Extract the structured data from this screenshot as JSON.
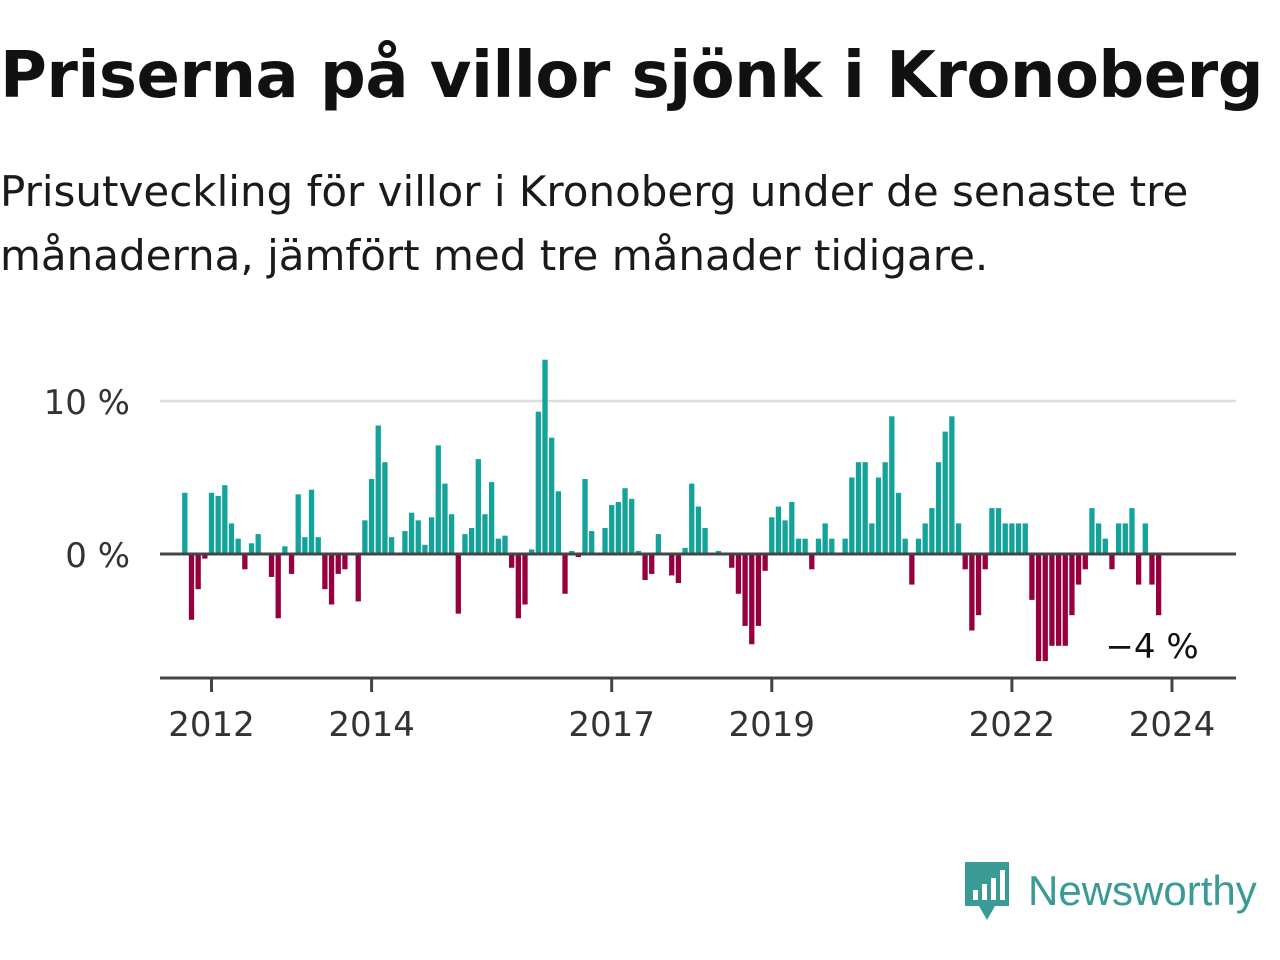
{
  "header": {
    "title": "Priserna på villor sjönk i Kronoberg",
    "subtitle": "Prisutveckling för villor i Kronoberg under de senaste tre månaderna, jämfört med tre månader tidigare."
  },
  "brand": {
    "name": "Newsworthy",
    "icon": "newsworthy-logo-icon"
  },
  "colors": {
    "positive": "#13a39a",
    "negative": "#96003f",
    "grid": "#dddddd",
    "axis": "#444444"
  },
  "chart_data": {
    "type": "bar",
    "x_start": "2011-09",
    "x_step": "month",
    "y_ticks": [
      {
        "value": 0,
        "label": "0 %"
      },
      {
        "value": 10,
        "label": "10 %"
      }
    ],
    "x_ticks": [
      {
        "date": "2012-01",
        "label": "2012"
      },
      {
        "date": "2014-01",
        "label": "2014"
      },
      {
        "date": "2017-01",
        "label": "2017"
      },
      {
        "date": "2019-01",
        "label": "2019"
      },
      {
        "date": "2022-01",
        "label": "2022"
      },
      {
        "date": "2024-01",
        "label": "2024"
      }
    ],
    "ylim": [
      -8,
      13
    ],
    "last_value_label": "−4 %",
    "values": [
      4.0,
      -4.3,
      -2.3,
      -0.3,
      4.0,
      3.8,
      4.5,
      2.0,
      1.0,
      -1.0,
      0.7,
      1.3,
      0.0,
      -1.5,
      -4.2,
      0.5,
      -1.3,
      3.9,
      1.1,
      4.2,
      1.1,
      -2.3,
      -3.3,
      -1.3,
      -1.0,
      0.0,
      -3.1,
      2.2,
      4.9,
      8.4,
      6.0,
      1.1,
      0.0,
      1.5,
      2.7,
      2.2,
      0.6,
      2.4,
      7.1,
      4.6,
      2.6,
      -3.9,
      1.3,
      1.7,
      6.2,
      2.6,
      4.7,
      1.0,
      1.2,
      -0.9,
      -4.2,
      -3.3,
      0.3,
      9.3,
      12.7,
      7.6,
      4.1,
      -2.6,
      0.2,
      -0.2,
      4.9,
      1.5,
      0.0,
      1.7,
      3.2,
      3.4,
      4.3,
      3.6,
      0.2,
      -1.7,
      -1.3,
      1.3,
      0.0,
      -1.4,
      -1.9,
      0.4,
      4.6,
      3.1,
      1.7,
      0.0,
      0.2,
      0.0,
      -0.9,
      -2.6,
      -4.7,
      -5.9,
      -4.7,
      -1.1,
      2.4,
      3.1,
      2.2,
      3.4,
      1.0,
      1.0,
      -1.0,
      1.0,
      2.0,
      1.0,
      0.0,
      1.0,
      5.0,
      6.0,
      6.0,
      2.0,
      5.0,
      6.0,
      9.0,
      4.0,
      1.0,
      -2.0,
      1.0,
      2.0,
      3.0,
      6.0,
      8.0,
      9.0,
      2.0,
      -1.0,
      -5.0,
      -4.0,
      -1.0,
      3.0,
      3.0,
      2.0,
      2.0,
      2.0,
      2.0,
      -3.0,
      -7.0,
      -7.0,
      -6.0,
      -6.0,
      -6.0,
      -4.0,
      -2.0,
      -1.0,
      3.0,
      2.0,
      1.0,
      -1.0,
      2.0,
      2.0,
      3.0,
      -2.0,
      2.0,
      -2.0,
      -4.0
    ]
  }
}
